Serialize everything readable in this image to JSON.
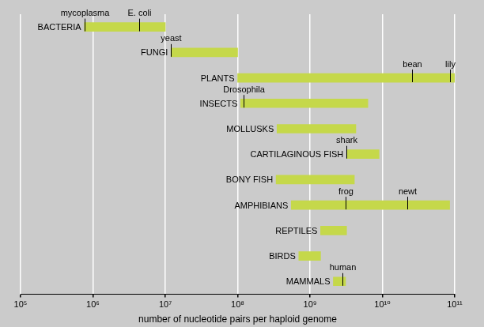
{
  "chart_data": {
    "type": "bar",
    "orientation": "horizontal",
    "log": "x",
    "xlabel": "number of nucleotide pairs per haploid genome",
    "categories": [
      "BACTERIA",
      "FUNGI",
      "PLANTS",
      "INSECTS",
      "MOLLUSKS",
      "CARTILAGINOUS FISH",
      "BONY FISH",
      "AMPHIBIANS",
      "REPTILES",
      "BIRDS",
      "MAMMALS"
    ],
    "values": [
      [
        760000,
        10000000
      ],
      [
        12000000,
        100000000
      ],
      [
        100000000,
        100000000000
      ],
      [
        110000000,
        6300000000
      ],
      [
        350000000,
        4300000000
      ],
      [
        3200000000,
        9000000000
      ],
      [
        340000000,
        4100000000
      ],
      [
        550000000,
        85000000000
      ],
      [
        1400000000,
        3200000000
      ],
      [
        700000000,
        1400000000
      ],
      [
        2100000000,
        3100000000
      ]
    ],
    "color": "#c5d84a",
    "xlim": [
      100000,
      100000000000
    ],
    "xticks": [
      {
        "value": 100000,
        "label": "10⁵"
      },
      {
        "value": 1000000,
        "label": "10⁶"
      },
      {
        "value": 10000000,
        "label": "10⁷"
      },
      {
        "value": 100000000,
        "label": "10⁸"
      },
      {
        "value": 1000000000,
        "label": "10⁹"
      },
      {
        "value": 10000000000,
        "label": "10¹⁰"
      },
      {
        "value": 100000000000,
        "label": "10¹¹"
      }
    ],
    "grid": true,
    "tick_labels": "x",
    "annotations": [
      {
        "category": "BACTERIA",
        "label": "mycoplasma",
        "value": 760000
      },
      {
        "category": "BACTERIA",
        "label": "E. coli",
        "value": 4400000
      },
      {
        "category": "FUNGI",
        "label": "yeast",
        "value": 12000000
      },
      {
        "category": "PLANTS",
        "label": "bean",
        "value": 26000000000
      },
      {
        "category": "PLANTS",
        "label": "lily",
        "value": 85000000000
      },
      {
        "category": "INSECTS",
        "label": "Drosophila",
        "value": 120000000
      },
      {
        "category": "CARTILAGINOUS FISH",
        "label": "shark",
        "value": 3200000000
      },
      {
        "category": "AMPHIBIANS",
        "label": "frog",
        "value": 3100000000
      },
      {
        "category": "AMPHIBIANS",
        "label": "newt",
        "value": 22000000000
      },
      {
        "category": "MAMMALS",
        "label": "human",
        "value": 2800000000
      }
    ]
  }
}
